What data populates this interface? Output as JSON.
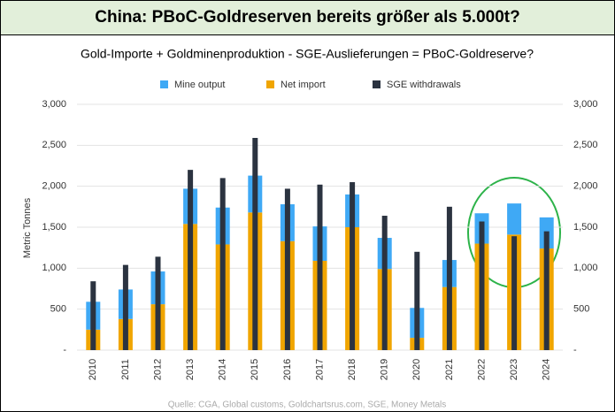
{
  "chart_data": {
    "type": "bar",
    "title": "China: PBoC-Goldreserven bereits größer als 5.000t?",
    "subtitle": "Gold-Importe + Goldminenproduktion - SGE-Auslieferungen = PBoC-Goldreserve?",
    "y_label": "Metric Tonnes",
    "source": "Quelle: CGA, Global customs, Goldchartsrus.com, SGE, Money Metals",
    "categories": [
      "2010",
      "2011",
      "2012",
      "2013",
      "2014",
      "2015",
      "2016",
      "2017",
      "2018",
      "2019",
      "2020",
      "2021",
      "2022",
      "2023",
      "2024"
    ],
    "series": [
      {
        "name": "Mine output",
        "color": "#3fa9f5",
        "values": [
          340,
          360,
          400,
          430,
          450,
          450,
          450,
          420,
          400,
          380,
          365,
          330,
          370,
          380,
          380
        ]
      },
      {
        "name": "Net import",
        "color": "#f0a500",
        "values": [
          250,
          380,
          560,
          1540,
          1290,
          1680,
          1330,
          1090,
          1500,
          990,
          150,
          770,
          1300,
          1410,
          1240
        ]
      },
      {
        "name": "SGE withdrawals",
        "color": "#2b3340",
        "values": [
          840,
          1040,
          1140,
          2200,
          2100,
          2590,
          1970,
          2020,
          2050,
          1640,
          1200,
          1750,
          1570,
          1390,
          1450
        ]
      }
    ],
    "ylim": [
      0,
      3000
    ],
    "yticks": [
      {
        "value": 0,
        "label": "-"
      },
      500,
      {
        "value": 1000,
        "label": "1,000"
      },
      {
        "value": 1500,
        "label": "1,500"
      },
      {
        "value": 2000,
        "label": "2,000"
      },
      {
        "value": 2500,
        "label": "2,500"
      },
      {
        "value": 3000,
        "label": "3,000"
      }
    ],
    "grid": true
  }
}
